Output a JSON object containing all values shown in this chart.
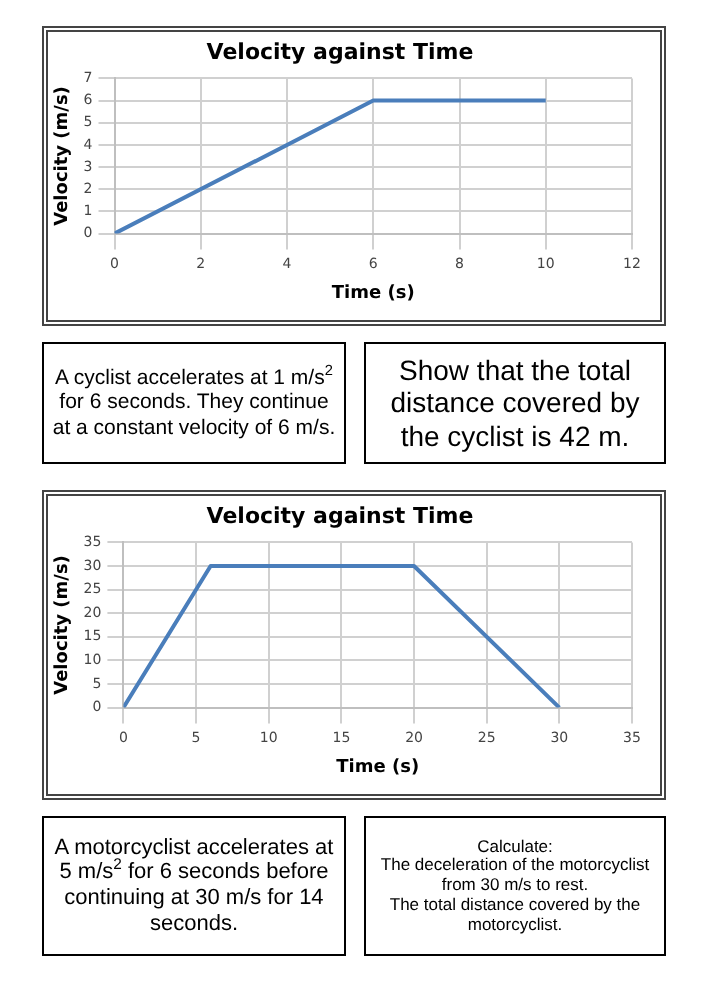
{
  "chart_data": [
    {
      "type": "line",
      "title": "Velocity against Time",
      "xlabel": "Time (s)",
      "ylabel": "Velocity (m/s)",
      "x": [
        0,
        6,
        10
      ],
      "series": [
        {
          "color": "#4a7ebb",
          "values": [
            0,
            6,
            6
          ]
        }
      ],
      "xlim": [
        0,
        12
      ],
      "xticks": [
        0,
        2,
        4,
        6,
        8,
        10,
        12
      ],
      "ylim": [
        0,
        7
      ],
      "yticks": [
        0,
        1,
        2,
        3,
        4,
        5,
        6,
        7
      ],
      "grid": true,
      "marker": "none"
    },
    {
      "type": "other",
      "annotations": [
        "A cyclist accelerates at 1 m/s$^{2}$ for 6 seconds. They continue at a constant velocity of 6 m/s."
      ]
    },
    {
      "type": "other",
      "annotations": [
        "Show that the total distance covered by the cyclist is 42 m."
      ]
    },
    {
      "type": "line",
      "title": "Velocity against Time",
      "xlabel": "Time (s)",
      "ylabel": "Velocity (m/s)",
      "x": [
        0,
        6,
        20,
        30
      ],
      "series": [
        {
          "color": "#4a7ebb",
          "values": [
            0,
            30,
            30,
            0
          ]
        }
      ],
      "xlim": [
        0,
        35
      ],
      "xticks": [
        0,
        5,
        10,
        15,
        20,
        25,
        30,
        35
      ],
      "ylim": [
        0,
        35
      ],
      "yticks": [
        0,
        5,
        10,
        15,
        20,
        25,
        30,
        35
      ],
      "grid": true,
      "marker": "none"
    },
    {
      "type": "other",
      "annotations": [
        "A motorcyclist accelerates at 5 m/s$^{2}$ for 6 seconds before continuing at 30 m/s for 14 seconds."
      ]
    },
    {
      "type": "other",
      "annotations": [
        "Calculate:",
        "The deceleration of the motorcyclist from 30 m/s to rest.",
        "The total distance covered by the motorcyclist."
      ]
    }
  ]
}
